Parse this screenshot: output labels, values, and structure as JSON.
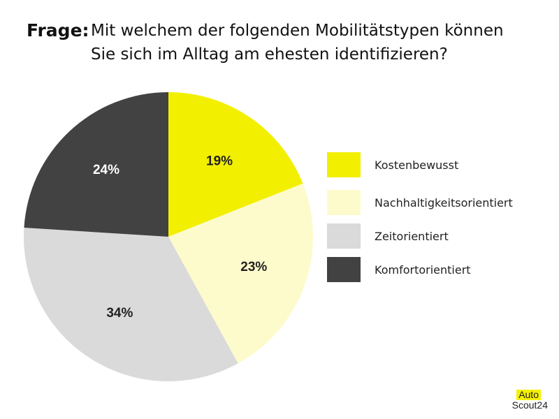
{
  "question": {
    "label": "Frage:",
    "text_line1": "Mit welchem der folgenden Mobilitätstypen können",
    "text_line2": "Sie sich im Alltag am ehesten identifizieren?"
  },
  "chart_data": {
    "type": "pie",
    "title": "Mit welchem der folgenden Mobilitätstypen können Sie sich im Alltag am ehesten identifizieren?",
    "start": "12 o'clock, clockwise",
    "slices": [
      {
        "name": "Kostenbewusst",
        "value": 19,
        "label": "19%",
        "color": "#f2ef00"
      },
      {
        "name": "Nachhaltigkeitsorientiert",
        "value": 23,
        "label": "23%",
        "color": "#fdfbcc"
      },
      {
        "name": "Zeitorientiert",
        "value": 34,
        "label": "34%",
        "color": "#dadada"
      },
      {
        "name": "Komfortorientiert",
        "value": 24,
        "label": "24%",
        "color": "#424242"
      }
    ],
    "label_colors": {
      "dark_slice": "#ffffff",
      "light_slice": "#222222"
    },
    "legend_position": "right"
  },
  "brand": {
    "line1": "Auto",
    "line2": "Scout24",
    "accent": "#f5f000"
  }
}
